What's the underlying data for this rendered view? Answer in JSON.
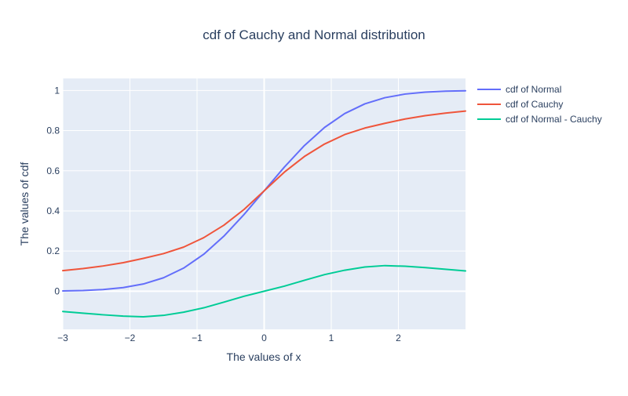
{
  "chart_data": {
    "type": "line",
    "title": "cdf of Cauchy and Normal distribution",
    "xlabel": "The values of x",
    "ylabel": "The values of cdf",
    "xlim": [
      -3,
      3
    ],
    "ylim": [
      -0.19,
      1.06
    ],
    "xticks": [
      -3,
      -2,
      -1,
      0,
      1,
      2
    ],
    "xtick_labels": [
      "−3",
      "−2",
      "−1",
      "0",
      "1",
      "2"
    ],
    "yticks": [
      0,
      0.2,
      0.4,
      0.6,
      0.8,
      1
    ],
    "ytick_labels": [
      "0",
      "0.2",
      "0.4",
      "0.6",
      "0.8",
      "1"
    ],
    "grid": true,
    "legend_position": "top-right outside",
    "plot_bg": "#e5ecf6",
    "x": [
      -3.0,
      -2.7,
      -2.4,
      -2.1,
      -1.8,
      -1.5,
      -1.2,
      -0.9,
      -0.6,
      -0.3,
      0.0,
      0.3,
      0.6,
      0.9,
      1.2,
      1.5,
      1.8,
      2.1,
      2.4,
      2.7,
      3.0
    ],
    "series": [
      {
        "name": "cdf of Normal",
        "color": "#636efa",
        "values": [
          0.0013,
          0.0035,
          0.0082,
          0.0179,
          0.0359,
          0.0668,
          0.1151,
          0.1841,
          0.2743,
          0.3821,
          0.5,
          0.6179,
          0.7257,
          0.8159,
          0.8849,
          0.9332,
          0.9641,
          0.9821,
          0.9918,
          0.9965,
          0.9987
        ]
      },
      {
        "name": "cdf of Cauchy",
        "color": "#ef553b",
        "values": [
          0.1024,
          0.1128,
          0.1257,
          0.1421,
          0.1635,
          0.1872,
          0.2197,
          0.2668,
          0.3288,
          0.4072,
          0.5,
          0.5928,
          0.6712,
          0.7332,
          0.7803,
          0.8128,
          0.8365,
          0.8579,
          0.8743,
          0.8872,
          0.8976
        ]
      },
      {
        "name": "cdf of Normal - Cauchy",
        "color": "#00cc96",
        "values": [
          -0.1011,
          -0.1093,
          -0.1175,
          -0.1242,
          -0.1276,
          -0.1204,
          -0.1046,
          -0.0827,
          -0.0545,
          -0.0251,
          0.0,
          0.0251,
          0.0545,
          0.0827,
          0.1046,
          0.1204,
          0.1276,
          0.1242,
          0.1175,
          0.1093,
          0.1011
        ]
      }
    ]
  }
}
